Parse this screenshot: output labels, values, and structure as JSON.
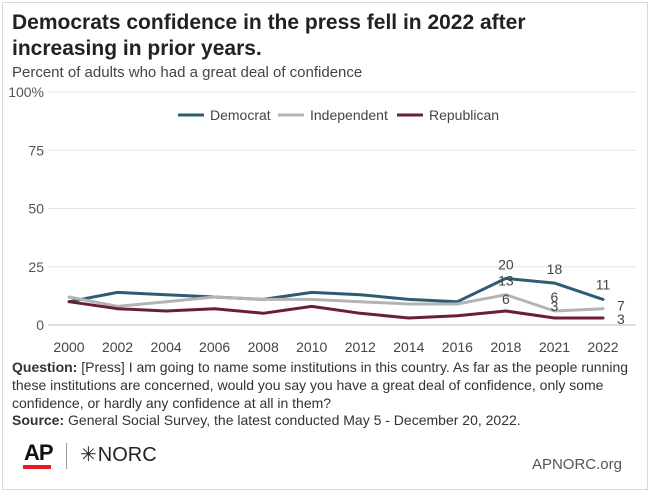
{
  "header": {
    "title": "Democrats confidence in the press fell in 2022 after increasing in prior years.",
    "subtitle": "Percent of adults who had a great deal of confidence"
  },
  "footer": {
    "question_label": "Question:",
    "question_text": "[Press] I am going to name some institutions in this country. As far as the people running these institutions are concerned, would you say you have a great deal of confidence, only some confidence, or hardly any confidence at all in them?",
    "source_label": "Source:",
    "source_text": "General Social Survey, the latest conducted May 5 - December 20, 2022.",
    "logo_ap": "AP",
    "logo_norc": "NORC",
    "site": "APNORC.org"
  },
  "chart_data": {
    "type": "line",
    "title": "Democrats confidence in the press fell in 2022 after increasing in prior years.",
    "subtitle": "Percent of adults who had a great deal of confidence",
    "xlabel": "",
    "ylabel": "",
    "categories": [
      "2000",
      "2002",
      "2004",
      "2006",
      "2008",
      "2010",
      "2012",
      "2014",
      "2016",
      "2018",
      "2021",
      "2022"
    ],
    "yticks": [
      "0",
      "25",
      "50",
      "75",
      "100%"
    ],
    "ylim": [
      0,
      100
    ],
    "grid": true,
    "legend_position": "top",
    "series": [
      {
        "name": "Democrat",
        "color": "#2e5d73",
        "values": [
          10,
          14,
          13,
          12,
          11,
          14,
          13,
          11,
          10,
          20,
          18,
          11
        ]
      },
      {
        "name": "Independent",
        "color": "#b4b4b4",
        "values": [
          12,
          8,
          10,
          12,
          11,
          11,
          10,
          9,
          9,
          13,
          6,
          7
        ]
      },
      {
        "name": "Republican",
        "color": "#6b1f34",
        "values": [
          10,
          7,
          6,
          7,
          5,
          8,
          5,
          3,
          4,
          6,
          3,
          3
        ]
      }
    ],
    "data_labels": [
      {
        "series": 0,
        "index": 9,
        "text": "20"
      },
      {
        "series": 0,
        "index": 10,
        "text": "18"
      },
      {
        "series": 0,
        "index": 11,
        "text": "11"
      },
      {
        "series": 1,
        "index": 9,
        "text": "13"
      },
      {
        "series": 1,
        "index": 10,
        "text": "6"
      },
      {
        "series": 1,
        "index": 11,
        "text": "7"
      },
      {
        "series": 2,
        "index": 9,
        "text": "6"
      },
      {
        "series": 2,
        "index": 10,
        "text": "3"
      },
      {
        "series": 2,
        "index": 11,
        "text": "3"
      }
    ]
  }
}
